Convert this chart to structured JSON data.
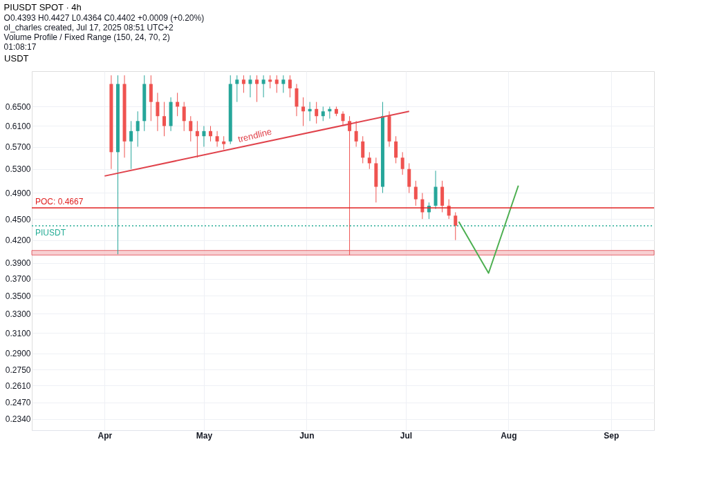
{
  "chart_data": {
    "type": "candlestick",
    "title": "PIUSDT SPOT · 4h",
    "subtitle": "O0.4393 H0.4427 L0.4364 C0.4402 +0.0009 (+0.20%)",
    "ylabel": "USDT",
    "annotations": [
      "ol_charles created, Jul 17, 2025 08:51 UTC+2",
      "Volume Profile / Fixed Range (150, 24, 70, 2)",
      "01:08:17"
    ],
    "x": [
      "2025-04-03",
      "2025-04-05",
      "2025-04-07",
      "2025-04-09",
      "2025-04-11",
      "2025-04-13",
      "2025-04-15",
      "2025-04-17",
      "2025-04-19",
      "2025-04-21",
      "2025-04-23",
      "2025-04-25",
      "2025-04-27",
      "2025-04-29",
      "2025-05-01",
      "2025-05-03",
      "2025-05-05",
      "2025-05-07",
      "2025-05-09",
      "2025-05-11",
      "2025-05-13",
      "2025-05-15",
      "2025-05-17",
      "2025-05-19",
      "2025-05-21",
      "2025-05-23",
      "2025-05-25",
      "2025-05-27",
      "2025-05-29",
      "2025-05-31",
      "2025-06-02",
      "2025-06-04",
      "2025-06-06",
      "2025-06-08",
      "2025-06-10",
      "2025-06-12",
      "2025-06-14",
      "2025-06-16",
      "2025-06-18",
      "2025-06-20",
      "2025-06-22",
      "2025-06-24",
      "2025-06-26",
      "2025-06-28",
      "2025-06-30",
      "2025-07-02",
      "2025-07-04",
      "2025-07-06",
      "2025-07-08",
      "2025-07-10",
      "2025-07-12",
      "2025-07-14",
      "2025-07-16"
    ],
    "ohlc": [
      [
        0.7,
        0.72,
        0.53,
        0.56
      ],
      [
        0.56,
        0.72,
        0.401,
        0.7
      ],
      [
        0.7,
        0.72,
        0.55,
        0.58
      ],
      [
        0.58,
        0.62,
        0.53,
        0.6
      ],
      [
        0.6,
        0.64,
        0.57,
        0.62
      ],
      [
        0.62,
        0.72,
        0.6,
        0.7
      ],
      [
        0.7,
        0.72,
        0.62,
        0.66
      ],
      [
        0.66,
        0.68,
        0.6,
        0.63
      ],
      [
        0.63,
        0.66,
        0.59,
        0.61
      ],
      [
        0.61,
        0.67,
        0.6,
        0.66
      ],
      [
        0.66,
        0.68,
        0.63,
        0.65
      ],
      [
        0.65,
        0.66,
        0.6,
        0.62
      ],
      [
        0.62,
        0.63,
        0.58,
        0.6
      ],
      [
        0.6,
        0.62,
        0.55,
        0.59
      ],
      [
        0.59,
        0.61,
        0.57,
        0.6
      ],
      [
        0.6,
        0.61,
        0.58,
        0.59
      ],
      [
        0.59,
        0.6,
        0.57,
        0.58
      ],
      [
        0.58,
        0.59,
        0.565,
        0.575
      ],
      [
        0.58,
        0.72,
        0.575,
        0.7
      ],
      [
        0.7,
        0.72,
        0.66,
        0.71
      ],
      [
        0.71,
        0.72,
        0.68,
        0.7
      ],
      [
        0.7,
        0.72,
        0.67,
        0.71
      ],
      [
        0.71,
        0.72,
        0.66,
        0.7
      ],
      [
        0.7,
        0.72,
        0.67,
        0.71
      ],
      [
        0.71,
        0.72,
        0.69,
        0.705
      ],
      [
        0.71,
        0.72,
        0.68,
        0.7
      ],
      [
        0.7,
        0.72,
        0.68,
        0.71
      ],
      [
        0.71,
        0.72,
        0.67,
        0.69
      ],
      [
        0.69,
        0.7,
        0.63,
        0.65
      ],
      [
        0.65,
        0.67,
        0.61,
        0.64
      ],
      [
        0.64,
        0.66,
        0.62,
        0.645
      ],
      [
        0.645,
        0.66,
        0.615,
        0.63
      ],
      [
        0.63,
        0.65,
        0.62,
        0.64
      ],
      [
        0.64,
        0.65,
        0.625,
        0.645
      ],
      [
        0.645,
        0.65,
        0.63,
        0.635
      ],
      [
        0.635,
        0.64,
        0.61,
        0.62
      ],
      [
        0.62,
        0.63,
        0.4,
        0.6
      ],
      [
        0.6,
        0.62,
        0.57,
        0.58
      ],
      [
        0.58,
        0.59,
        0.54,
        0.55
      ],
      [
        0.55,
        0.56,
        0.53,
        0.54
      ],
      [
        0.54,
        0.55,
        0.475,
        0.5
      ],
      [
        0.5,
        0.66,
        0.49,
        0.63
      ],
      [
        0.63,
        0.64,
        0.57,
        0.58
      ],
      [
        0.58,
        0.59,
        0.54,
        0.55
      ],
      [
        0.55,
        0.56,
        0.52,
        0.53
      ],
      [
        0.53,
        0.54,
        0.49,
        0.5
      ],
      [
        0.5,
        0.51,
        0.47,
        0.48
      ],
      [
        0.48,
        0.49,
        0.45,
        0.46
      ],
      [
        0.46,
        0.475,
        0.45,
        0.47
      ],
      [
        0.47,
        0.527,
        0.465,
        0.5
      ],
      [
        0.5,
        0.51,
        0.46,
        0.47
      ],
      [
        0.47,
        0.48,
        0.45,
        0.455
      ],
      [
        0.455,
        0.46,
        0.42,
        0.4402
      ]
    ],
    "colors": [
      "#ef5350",
      "#26a69a",
      "#ef5350",
      "#26a69a",
      "#26a69a",
      "#26a69a",
      "#ef5350",
      "#ef5350",
      "#ef5350",
      "#26a69a",
      "#ef5350",
      "#ef5350",
      "#ef5350",
      "#ef5350",
      "#26a69a",
      "#ef5350",
      "#ef5350",
      "#ef5350",
      "#26a69a",
      "#26a69a",
      "#ef5350",
      "#26a69a",
      "#ef5350",
      "#26a69a",
      "#ef5350",
      "#ef5350",
      "#26a69a",
      "#ef5350",
      "#ef5350",
      "#ef5350",
      "#26a69a",
      "#ef5350",
      "#26a69a",
      "#26a69a",
      "#ef5350",
      "#ef5350",
      "#ef5350",
      "#ef5350",
      "#ef5350",
      "#ef5350",
      "#ef5350",
      "#26a69a",
      "#ef5350",
      "#ef5350",
      "#ef5350",
      "#ef5350",
      "#ef5350",
      "#ef5350",
      "#26a69a",
      "#26a69a",
      "#ef5350",
      "#ef5350",
      "#ef5350"
    ],
    "series": [
      {
        "name": "trendline",
        "type": "line",
        "color": "#e0424b",
        "x": [
          "2025-04-01",
          "2025-07-02"
        ],
        "values": [
          0.518,
          0.64
        ]
      },
      {
        "type": "line",
        "color": "#4caf50",
        "x": [
          "2025-07-17",
          "2025-07-26",
          "2025-08-04"
        ],
        "values": [
          0.446,
          0.377,
          0.502
        ]
      }
    ],
    "ref_lines": [
      {
        "axis": "y",
        "value": 0.4667,
        "label": "POC: 0.4667",
        "color": "#e02020",
        "line_style": "solid"
      },
      {
        "axis": "y",
        "value": 0.4402,
        "label": "PIUSDT",
        "color": "#22ab94",
        "line_style": "dotted"
      }
    ],
    "bands": [
      {
        "axis": "y",
        "from": 0.4,
        "to": 0.406,
        "color": "#f7c5c8"
      }
    ],
    "log": true,
    "ylim": [
      0.2255,
      0.73
    ],
    "yticks": [
      {
        "value": 0.234,
        "label": "0.2340"
      },
      {
        "value": 0.247,
        "label": "0.2470"
      },
      {
        "value": 0.261,
        "label": "0.2610"
      },
      {
        "value": 0.275,
        "label": "0.2750"
      },
      {
        "value": 0.29,
        "label": "0.2900"
      },
      {
        "value": 0.31,
        "label": "0.3100"
      },
      {
        "value": 0.33,
        "label": "0.3300"
      },
      {
        "value": 0.35,
        "label": "0.3500"
      },
      {
        "value": 0.37,
        "label": "0.3700"
      },
      {
        "value": 0.39,
        "label": "0.3900"
      },
      {
        "value": 0.42,
        "label": "0.4200"
      },
      {
        "value": 0.45,
        "label": "0.4500"
      },
      {
        "value": 0.49,
        "label": "0.4900"
      },
      {
        "value": 0.53,
        "label": "0.5300"
      },
      {
        "value": 0.57,
        "label": "0.5700"
      },
      {
        "value": 0.61,
        "label": "0.6100"
      },
      {
        "value": 0.65,
        "label": "0.6500"
      }
    ],
    "xlim": [
      "2025-03-10",
      "2025-09-14"
    ],
    "xticks": [
      {
        "value": "2025-04-01",
        "label": "Apr"
      },
      {
        "value": "2025-05-01",
        "label": "May"
      },
      {
        "value": "2025-06-01",
        "label": "Jun"
      },
      {
        "value": "2025-07-01",
        "label": "Jul"
      },
      {
        "value": "2025-08-01",
        "label": "Aug"
      },
      {
        "value": "2025-09-01",
        "label": "Sep"
      }
    ],
    "grid": true,
    "marker": "none",
    "line_style": "solid"
  }
}
